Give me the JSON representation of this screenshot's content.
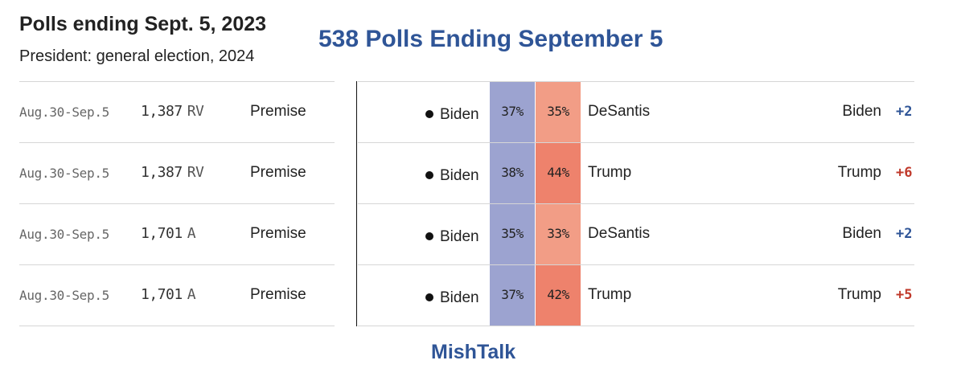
{
  "header": {
    "title": "Polls ending Sept. 5, 2023",
    "subtitle": "President: general election, 2024",
    "overlay_title": "538 Polls Ending September 5"
  },
  "colors": {
    "biden_fill": "#9ca3d0",
    "desantis_fill": "#f29d86",
    "trump_fill": "#ee826c",
    "dem_margin": "#2f5597",
    "rep_margin": "#c0392b",
    "overlay_text": "#2f5597"
  },
  "icons": {
    "candidate_marker": "filled-dot-icon"
  },
  "polls": [
    {
      "dates": "Aug.30-Sep.5",
      "sample": "1,387",
      "population": "RV",
      "pollster": "Premise",
      "cand1": "Biden",
      "pct1": "37%",
      "cand2": "DeSantis",
      "pct2": "35%",
      "leader": "Biden",
      "margin": "+2",
      "leader_party": "dem",
      "cand2_color": "#f29d86"
    },
    {
      "dates": "Aug.30-Sep.5",
      "sample": "1,387",
      "population": "RV",
      "pollster": "Premise",
      "cand1": "Biden",
      "pct1": "38%",
      "cand2": "Trump",
      "pct2": "44%",
      "leader": "Trump",
      "margin": "+6",
      "leader_party": "rep",
      "cand2_color": "#ee826c"
    },
    {
      "dates": "Aug.30-Sep.5",
      "sample": "1,701",
      "population": "A",
      "pollster": "Premise",
      "cand1": "Biden",
      "pct1": "35%",
      "cand2": "DeSantis",
      "pct2": "33%",
      "leader": "Biden",
      "margin": "+2",
      "leader_party": "dem",
      "cand2_color": "#f29d86"
    },
    {
      "dates": "Aug.30-Sep.5",
      "sample": "1,701",
      "population": "A",
      "pollster": "Premise",
      "cand1": "Biden",
      "pct1": "37%",
      "cand2": "Trump",
      "pct2": "42%",
      "leader": "Trump",
      "margin": "+5",
      "leader_party": "rep",
      "cand2_color": "#ee826c"
    }
  ],
  "footer": {
    "watermark": "MishTalk"
  }
}
